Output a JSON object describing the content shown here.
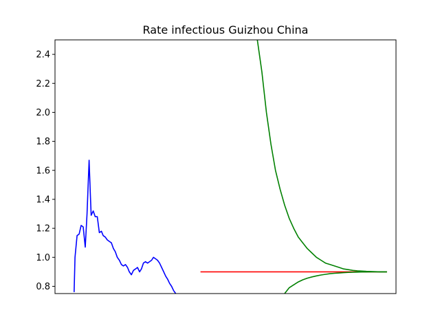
{
  "chart_data": {
    "type": "line",
    "title": "Rate infectious Guizhou China",
    "xlabel": "",
    "ylabel": "",
    "x_ticks_shown": false,
    "xlim": [
      0,
      150
    ],
    "ylim": [
      0.75,
      2.5
    ],
    "yticks": [
      0.8,
      1.0,
      1.2,
      1.4,
      1.6,
      1.8,
      2.0,
      2.2,
      2.4
    ],
    "ytick_labels": [
      "0.8",
      "1.0",
      "1.2",
      "1.4",
      "1.6",
      "1.8",
      "2.0",
      "2.2",
      "2.4"
    ],
    "grid": false,
    "series": [
      {
        "color": "#0000ff",
        "x": [
          8.4,
          8.8,
          9.7,
          10.6,
          11.5,
          12.4,
          13.3,
          14.1,
          15.0,
          15.5,
          15.9,
          16.8,
          17.7,
          18.6,
          19.5,
          20.4,
          21.2,
          22.1,
          23.0,
          23.9,
          24.8,
          25.7,
          26.5,
          27.4,
          28.3,
          29.2,
          30.1,
          31.0,
          31.9,
          32.7,
          33.6,
          34.5,
          35.4,
          36.3,
          37.2,
          38.0,
          38.9,
          39.8,
          40.7,
          41.6,
          42.5,
          43.3,
          44.2,
          45.1,
          46.0,
          46.9,
          47.8,
          48.7,
          49.5,
          50.4,
          51.3,
          52.2,
          53.1,
          54.0
        ],
        "values": [
          0.76,
          1.0,
          1.15,
          1.16,
          1.22,
          1.21,
          1.07,
          1.3,
          1.67,
          1.45,
          1.29,
          1.32,
          1.28,
          1.28,
          1.17,
          1.18,
          1.15,
          1.14,
          1.12,
          1.11,
          1.1,
          1.06,
          1.04,
          1.0,
          0.98,
          0.95,
          0.94,
          0.95,
          0.93,
          0.9,
          0.88,
          0.91,
          0.92,
          0.93,
          0.9,
          0.92,
          0.96,
          0.97,
          0.96,
          0.97,
          0.98,
          1.0,
          0.99,
          0.98,
          0.96,
          0.93,
          0.9,
          0.87,
          0.85,
          0.82,
          0.8,
          0.77,
          0.75,
          0.74
        ]
      },
      {
        "color": "#ff0000",
        "x": [
          64,
          146
        ],
        "values": [
          0.9,
          0.9
        ]
      },
      {
        "color": "#008000",
        "x": [
          89,
          91,
          93,
          95,
          97,
          99,
          101,
          103,
          105,
          107,
          109,
          111,
          113,
          115,
          117,
          119,
          121,
          123,
          125,
          127,
          129,
          131,
          133,
          135,
          137,
          139,
          141,
          143,
          146
        ],
        "values": [
          2.5,
          2.28,
          2.0,
          1.78,
          1.6,
          1.47,
          1.36,
          1.27,
          1.2,
          1.14,
          1.1,
          1.06,
          1.03,
          1.0,
          0.98,
          0.96,
          0.95,
          0.94,
          0.93,
          0.92,
          0.915,
          0.91,
          0.907,
          0.905,
          0.903,
          0.902,
          0.901,
          0.9,
          0.9
        ]
      },
      {
        "color": "#008000",
        "x": [
          101,
          103,
          105,
          107,
          109,
          111,
          113,
          115,
          117,
          119,
          121,
          123,
          125,
          127,
          129,
          131,
          133,
          135,
          137,
          139,
          141,
          143,
          146
        ],
        "values": [
          0.75,
          0.79,
          0.81,
          0.83,
          0.845,
          0.856,
          0.865,
          0.872,
          0.878,
          0.883,
          0.887,
          0.89,
          0.892,
          0.894,
          0.896,
          0.897,
          0.898,
          0.899,
          0.899,
          0.9,
          0.9,
          0.9,
          0.9
        ]
      }
    ]
  }
}
